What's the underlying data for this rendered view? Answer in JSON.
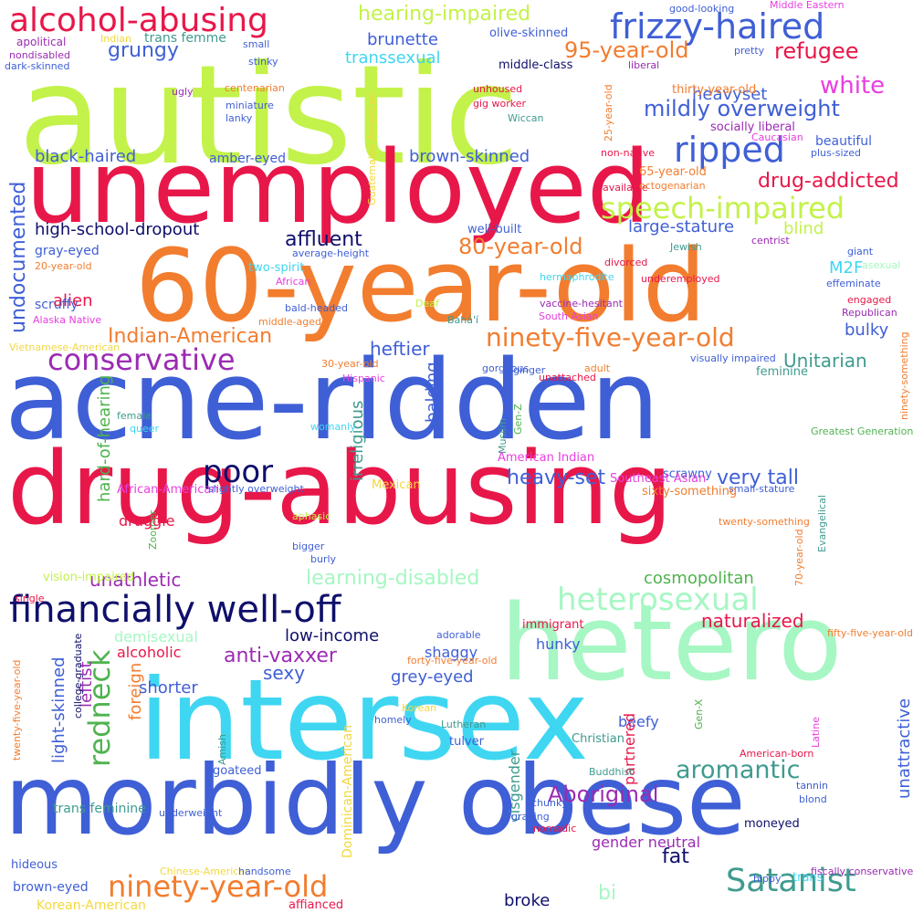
{
  "palette": {
    "red": "#e8174a",
    "blue": "#3f5fd6",
    "lime": "#c3f24a",
    "orange": "#f27d2f",
    "cyan": "#3fd6f2",
    "mint": "#a6f7c3",
    "navy": "#0f0f6b",
    "purple": "#9b2bb3",
    "teal": "#3f9b8f",
    "magenta": "#e83fe0",
    "yellow": "#f2d83f",
    "green": "#4fb34f"
  },
  "words": [
    {
      "text": "autistic",
      "color": "lime"
    },
    {
      "text": "unemployed",
      "color": "red"
    },
    {
      "text": "60-year-old",
      "color": "orange"
    },
    {
      "text": "acne-ridden",
      "color": "blue"
    },
    {
      "text": "drug-abusing",
      "color": "red"
    },
    {
      "text": "hetero",
      "color": "mint"
    },
    {
      "text": "intersex",
      "color": "cyan"
    },
    {
      "text": "morbidly obese",
      "color": "blue"
    },
    {
      "text": "financially well-off",
      "color": "navy"
    },
    {
      "text": "alcohol-abusing",
      "color": "red"
    },
    {
      "text": "frizzy-haired",
      "color": "blue"
    },
    {
      "text": "ripped",
      "color": "blue"
    },
    {
      "text": "speech-impaired",
      "color": "lime"
    },
    {
      "text": "conservative",
      "color": "purple"
    },
    {
      "text": "poor",
      "color": "navy"
    },
    {
      "text": "heterosexual",
      "color": "mint"
    },
    {
      "text": "ninety-year-old",
      "color": "orange"
    },
    {
      "text": "Satanist",
      "color": "teal"
    },
    {
      "text": "redneck",
      "color": "green"
    },
    {
      "text": "ninety-five-year-old",
      "color": "orange"
    },
    {
      "text": "95-year-old",
      "color": "orange"
    },
    {
      "text": "80-year-old",
      "color": "orange"
    },
    {
      "text": "hearing-impaired",
      "color": "lime"
    },
    {
      "text": "mildly overweight",
      "color": "blue"
    },
    {
      "text": "refugee",
      "color": "red"
    },
    {
      "text": "white",
      "color": "magenta"
    },
    {
      "text": "drug-addicted",
      "color": "red"
    },
    {
      "text": "affluent",
      "color": "navy"
    },
    {
      "text": "high-school-dropout",
      "color": "navy"
    },
    {
      "text": "undocumented",
      "color": "blue"
    },
    {
      "text": "aromantic",
      "color": "teal"
    },
    {
      "text": "Aboriginal",
      "color": "purple"
    },
    {
      "text": "anti-vaxxer",
      "color": "purple"
    },
    {
      "text": "learning-disabled",
      "color": "mint"
    },
    {
      "text": "cosmopolitan",
      "color": "green"
    },
    {
      "text": "unathletic",
      "color": "purple"
    },
    {
      "text": "naturalized",
      "color": "red"
    },
    {
      "text": "Indian-American",
      "color": "orange"
    },
    {
      "text": "heavy-set",
      "color": "blue"
    },
    {
      "text": "very tall",
      "color": "blue"
    },
    {
      "text": "black-haired",
      "color": "blue"
    },
    {
      "text": "brown-skinned",
      "color": "blue"
    },
    {
      "text": "grungy",
      "color": "blue"
    },
    {
      "text": "brunette",
      "color": "blue"
    },
    {
      "text": "transsexual",
      "color": "cyan"
    },
    {
      "text": "heavyset",
      "color": "blue"
    },
    {
      "text": "large-stature",
      "color": "blue"
    },
    {
      "text": "alien",
      "color": "red"
    },
    {
      "text": "heftier",
      "color": "blue"
    },
    {
      "text": "balding",
      "color": "blue"
    },
    {
      "text": "irreligious",
      "color": "teal"
    },
    {
      "text": "hard-of-hearing",
      "color": "green"
    },
    {
      "text": "Unitarian",
      "color": "teal"
    },
    {
      "text": "bulky",
      "color": "blue"
    },
    {
      "text": "blind",
      "color": "lime"
    },
    {
      "text": "M2F",
      "color": "cyan"
    },
    {
      "text": "low-income",
      "color": "navy"
    },
    {
      "text": "sexy",
      "color": "blue"
    },
    {
      "text": "grey-eyed",
      "color": "blue"
    },
    {
      "text": "light-skinned",
      "color": "blue"
    },
    {
      "text": "leftist",
      "color": "purple"
    },
    {
      "text": "foreign",
      "color": "orange"
    },
    {
      "text": "shorter",
      "color": "blue"
    },
    {
      "text": "unattractive",
      "color": "blue"
    },
    {
      "text": "fat",
      "color": "navy"
    },
    {
      "text": "bi",
      "color": "mint"
    },
    {
      "text": "broke",
      "color": "navy"
    },
    {
      "text": "druggie",
      "color": "red"
    },
    {
      "text": "demisexual",
      "color": "mint"
    },
    {
      "text": "alcoholic",
      "color": "red"
    },
    {
      "text": "hunky",
      "color": "blue"
    },
    {
      "text": "shaggy",
      "color": "blue"
    },
    {
      "text": "beefy",
      "color": "blue"
    },
    {
      "text": "partnered",
      "color": "red"
    },
    {
      "text": "cisgender",
      "color": "teal"
    },
    {
      "text": "gender neutral",
      "color": "purple"
    },
    {
      "text": "trans feminine",
      "color": "teal"
    },
    {
      "text": "Korean-American",
      "color": "yellow"
    },
    {
      "text": "brown-eyed",
      "color": "blue"
    },
    {
      "text": "Dominican-American",
      "color": "yellow"
    },
    {
      "text": "scruffy",
      "color": "blue"
    },
    {
      "text": "gray-eyed",
      "color": "blue"
    },
    {
      "text": "amber-eyed",
      "color": "blue"
    },
    {
      "text": "apolitical",
      "color": "purple"
    },
    {
      "text": "nondisabled",
      "color": "purple"
    },
    {
      "text": "dark-skinned",
      "color": "blue"
    },
    {
      "text": "Indian",
      "color": "yellow"
    },
    {
      "text": "trans femme",
      "color": "teal"
    },
    {
      "text": "small",
      "color": "blue"
    },
    {
      "text": "stinky",
      "color": "blue"
    },
    {
      "text": "ugly",
      "color": "purple"
    },
    {
      "text": "miniature",
      "color": "blue"
    },
    {
      "text": "lanky",
      "color": "blue"
    },
    {
      "text": "centenarian",
      "color": "orange"
    },
    {
      "text": "olive-skinned",
      "color": "blue"
    },
    {
      "text": "middle-class",
      "color": "navy"
    },
    {
      "text": "unhoused",
      "color": "red"
    },
    {
      "text": "gig worker",
      "color": "red"
    },
    {
      "text": "Wiccan",
      "color": "teal"
    },
    {
      "text": "liberal",
      "color": "purple"
    },
    {
      "text": "good-looking",
      "color": "blue"
    },
    {
      "text": "Middle Eastern",
      "color": "magenta"
    },
    {
      "text": "pretty",
      "color": "blue"
    },
    {
      "text": "plus-sized",
      "color": "blue"
    },
    {
      "text": "thirty-year-old",
      "color": "orange"
    },
    {
      "text": "socially liberal",
      "color": "purple"
    },
    {
      "text": "Caucasian",
      "color": "magenta"
    },
    {
      "text": "beautiful",
      "color": "blue"
    },
    {
      "text": "25-year-old",
      "color": "orange"
    },
    {
      "text": "Guatemalan-American",
      "color": "yellow"
    },
    {
      "text": "non-native",
      "color": "red"
    },
    {
      "text": "available",
      "color": "red"
    },
    {
      "text": "65-year-old",
      "color": "orange"
    },
    {
      "text": "octogenarian",
      "color": "orange"
    },
    {
      "text": "well-built",
      "color": "blue"
    },
    {
      "text": "centrist",
      "color": "purple"
    },
    {
      "text": "Jewish",
      "color": "teal"
    },
    {
      "text": "giant",
      "color": "blue"
    },
    {
      "text": "average-height",
      "color": "blue"
    },
    {
      "text": "two-spirit",
      "color": "cyan"
    },
    {
      "text": "divorced",
      "color": "red"
    },
    {
      "text": "underemployed",
      "color": "red"
    },
    {
      "text": "hermaphrodite",
      "color": "cyan"
    },
    {
      "text": "asexual",
      "color": "mint"
    },
    {
      "text": "effeminate",
      "color": "blue"
    },
    {
      "text": "20-year-old",
      "color": "orange"
    },
    {
      "text": "African",
      "color": "magenta"
    },
    {
      "text": "bald-headed",
      "color": "blue"
    },
    {
      "text": "middle-aged",
      "color": "orange"
    },
    {
      "text": "Alaska Native",
      "color": "magenta"
    },
    {
      "text": "Deaf",
      "color": "lime"
    },
    {
      "text": "vaccine-hesitant",
      "color": "purple"
    },
    {
      "text": "South Asian",
      "color": "magenta"
    },
    {
      "text": "engaged",
      "color": "red"
    },
    {
      "text": "Republican",
      "color": "purple"
    },
    {
      "text": "Bahá'í",
      "color": "teal"
    },
    {
      "text": "Vietnamese-American",
      "color": "yellow"
    },
    {
      "text": "30-year-old",
      "color": "orange"
    },
    {
      "text": "Hispanic",
      "color": "magenta"
    },
    {
      "text": "ginger",
      "color": "blue"
    },
    {
      "text": "gorgeous",
      "color": "blue"
    },
    {
      "text": "unattached",
      "color": "red"
    },
    {
      "text": "adult",
      "color": "orange"
    },
    {
      "text": "visually impaired",
      "color": "blue"
    },
    {
      "text": "feminine",
      "color": "teal"
    },
    {
      "text": "female",
      "color": "teal"
    },
    {
      "text": "queer",
      "color": "cyan"
    },
    {
      "text": "womanly",
      "color": "cyan"
    },
    {
      "text": "Muslim",
      "color": "teal"
    },
    {
      "text": "Gen-Z",
      "color": "green"
    },
    {
      "text": "Greatest Generation",
      "color": "green"
    },
    {
      "text": "ninety-something",
      "color": "orange"
    },
    {
      "text": "American Indian",
      "color": "magenta"
    },
    {
      "text": "small-stature",
      "color": "blue"
    },
    {
      "text": "scrawny",
      "color": "blue"
    },
    {
      "text": "Southeast Asian",
      "color": "magenta"
    },
    {
      "text": "sixty-something",
      "color": "orange"
    },
    {
      "text": "Mexican",
      "color": "yellow"
    },
    {
      "text": "African-American",
      "color": "magenta"
    },
    {
      "text": "slightly overweight",
      "color": "blue"
    },
    {
      "text": "aphasic",
      "color": "lime"
    },
    {
      "text": "Zoomer",
      "color": "green"
    },
    {
      "text": "twenty-something",
      "color": "orange"
    },
    {
      "text": "Evangelical",
      "color": "teal"
    },
    {
      "text": "bigger",
      "color": "blue"
    },
    {
      "text": "70-year-old",
      "color": "orange"
    },
    {
      "text": "burly",
      "color": "blue"
    },
    {
      "text": "vision-impaired",
      "color": "lime"
    },
    {
      "text": "single",
      "color": "red"
    },
    {
      "text": "immigrant",
      "color": "red"
    },
    {
      "text": "fifty-five-year-old",
      "color": "orange"
    },
    {
      "text": "twenty-five-year-old",
      "color": "orange"
    },
    {
      "text": "college-graduate",
      "color": "navy"
    },
    {
      "text": "Amish",
      "color": "teal"
    },
    {
      "text": "adorable",
      "color": "blue"
    },
    {
      "text": "forty-five-year-old",
      "color": "orange"
    },
    {
      "text": "Latine",
      "color": "magenta"
    },
    {
      "text": "Korean",
      "color": "yellow"
    },
    {
      "text": "homely",
      "color": "blue"
    },
    {
      "text": "Christian",
      "color": "teal"
    },
    {
      "text": "Gen-X",
      "color": "green"
    },
    {
      "text": "Lutheran",
      "color": "teal"
    },
    {
      "text": "tulver",
      "color": "blue"
    },
    {
      "text": "American-born",
      "color": "red"
    },
    {
      "text": "goateed",
      "color": "blue"
    },
    {
      "text": "Buddhist",
      "color": "teal"
    },
    {
      "text": "tannin",
      "color": "blue"
    },
    {
      "text": "blond",
      "color": "blue"
    },
    {
      "text": "chunky",
      "color": "blue"
    },
    {
      "text": "underweight",
      "color": "blue"
    },
    {
      "text": "graying",
      "color": "blue"
    },
    {
      "text": "nomadic",
      "color": "red"
    },
    {
      "text": "moneyed",
      "color": "navy"
    },
    {
      "text": "hideous",
      "color": "blue"
    },
    {
      "text": "Chinese-American",
      "color": "yellow"
    },
    {
      "text": "handsome",
      "color": "blue"
    },
    {
      "text": "hippy",
      "color": "blue"
    },
    {
      "text": "trans",
      "color": "cyan"
    },
    {
      "text": "fiscally conservative",
      "color": "purple"
    },
    {
      "text": "affianced",
      "color": "red"
    }
  ]
}
